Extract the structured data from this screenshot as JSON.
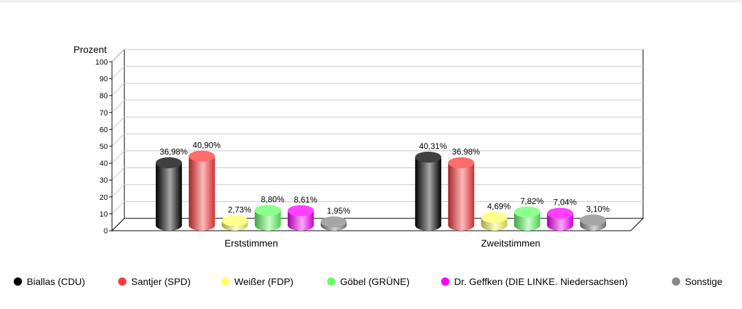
{
  "chart_data": {
    "type": "bar",
    "ylabel": "Prozent",
    "ylim": [
      0,
      100
    ],
    "yticks": [
      0,
      10,
      20,
      30,
      40,
      50,
      60,
      70,
      80,
      90,
      100
    ],
    "grid": true,
    "legend_position": "bottom",
    "categories": [
      "Erststimmen",
      "Zweitstimmen"
    ],
    "series": [
      {
        "name": "Biallas (CDU)",
        "color": "#000000",
        "values": [
          36.98,
          40.31
        ],
        "labels": [
          "36,98%",
          "40,31%"
        ]
      },
      {
        "name": "Santjer (SPD)",
        "color": "#ff3b3b",
        "values": [
          40.9,
          36.98
        ],
        "labels": [
          "40,90%",
          "36,98%"
        ]
      },
      {
        "name": "Weißer (FDP)",
        "color": "#ffff66",
        "values": [
          2.73,
          4.69
        ],
        "labels": [
          "2,73%",
          "4,69%"
        ]
      },
      {
        "name": "Göbel (GRÜNE)",
        "color": "#66ff66",
        "values": [
          8.8,
          7.82
        ],
        "labels": [
          "8,80%",
          "7,82%"
        ]
      },
      {
        "name": "Dr. Geffken (DIE LINKE. Niedersachsen)",
        "color": "#ff00ff",
        "values": [
          8.61,
          7.04
        ],
        "labels": [
          "8,61%",
          "7,04%"
        ]
      },
      {
        "name": "Sonstige",
        "color": "#888888",
        "values": [
          1.95,
          3.1
        ],
        "labels": [
          "1,95%",
          "3,10%"
        ]
      }
    ]
  }
}
